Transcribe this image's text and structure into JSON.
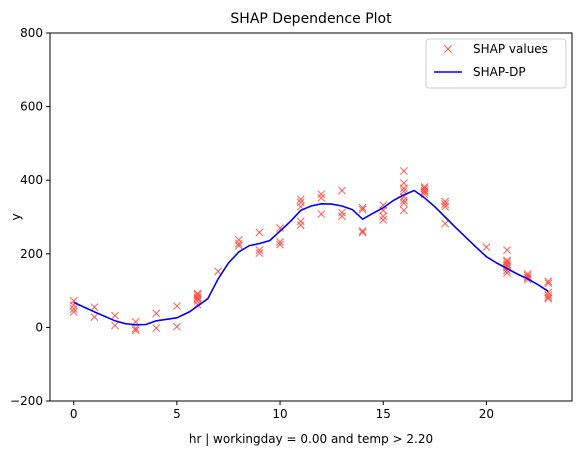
{
  "chart_data": {
    "type": "scatter",
    "title": "SHAP Dependence Plot",
    "xlabel": "hr | workingday = 0.00 and temp > 2.20",
    "ylabel": "y",
    "xlim": [
      -1.15,
      24.15
    ],
    "ylim": [
      -200,
      800
    ],
    "xticks": [
      0,
      5,
      10,
      15,
      20
    ],
    "yticks": [
      -200,
      0,
      200,
      400,
      600,
      800
    ],
    "grid": false,
    "legend_position": "top-right",
    "colors": {
      "scatter": "#ff3b30",
      "line": "#0000ff"
    },
    "series": [
      {
        "name": "SHAP values",
        "kind": "scatter",
        "marker": "x",
        "points": [
          [
            0,
            72
          ],
          [
            0,
            60
          ],
          [
            0,
            50
          ],
          [
            0,
            42
          ],
          [
            1,
            55
          ],
          [
            1,
            28
          ],
          [
            2,
            32
          ],
          [
            2,
            5
          ],
          [
            3,
            15
          ],
          [
            3,
            -3
          ],
          [
            3,
            -8
          ],
          [
            4,
            38
          ],
          [
            4,
            -2
          ],
          [
            5,
            58
          ],
          [
            5,
            2
          ],
          [
            6,
            92
          ],
          [
            6,
            88
          ],
          [
            6,
            82
          ],
          [
            6,
            78
          ],
          [
            6,
            72
          ],
          [
            6,
            62
          ],
          [
            7,
            152
          ],
          [
            8,
            238
          ],
          [
            8,
            228
          ],
          [
            8,
            222
          ],
          [
            9,
            258
          ],
          [
            9,
            210
          ],
          [
            9,
            202
          ],
          [
            10,
            270
          ],
          [
            10,
            232
          ],
          [
            10,
            225
          ],
          [
            11,
            348
          ],
          [
            11,
            340
          ],
          [
            11,
            328
          ],
          [
            11,
            288
          ],
          [
            11,
            278
          ],
          [
            12,
            362
          ],
          [
            12,
            352
          ],
          [
            12,
            308
          ],
          [
            13,
            372
          ],
          [
            13,
            312
          ],
          [
            13,
            302
          ],
          [
            14,
            325
          ],
          [
            14,
            320
          ],
          [
            14,
            262
          ],
          [
            14,
            258
          ],
          [
            15,
            332
          ],
          [
            15,
            318
          ],
          [
            15,
            302
          ],
          [
            15,
            292
          ],
          [
            16,
            425
          ],
          [
            16,
            392
          ],
          [
            16,
            378
          ],
          [
            16,
            370
          ],
          [
            16,
            355
          ],
          [
            16,
            345
          ],
          [
            16,
            338
          ],
          [
            16,
            318
          ],
          [
            17,
            382
          ],
          [
            17,
            378
          ],
          [
            17,
            372
          ],
          [
            17,
            368
          ],
          [
            17,
            362
          ],
          [
            18,
            342
          ],
          [
            18,
            335
          ],
          [
            18,
            328
          ],
          [
            18,
            282
          ],
          [
            20,
            218
          ],
          [
            21,
            210
          ],
          [
            21,
            182
          ],
          [
            21,
            178
          ],
          [
            21,
            172
          ],
          [
            21,
            168
          ],
          [
            21,
            162
          ],
          [
            21,
            155
          ],
          [
            21,
            148
          ],
          [
            22,
            145
          ],
          [
            22,
            140
          ],
          [
            22,
            135
          ],
          [
            22,
            130
          ],
          [
            23,
            125
          ],
          [
            23,
            120
          ],
          [
            23,
            95
          ],
          [
            23,
            88
          ],
          [
            23,
            82
          ],
          [
            23,
            78
          ]
        ]
      },
      {
        "name": "SHAP-DP",
        "kind": "line",
        "points": [
          [
            0,
            68
          ],
          [
            1,
            42
          ],
          [
            2,
            18
          ],
          [
            2.5,
            10
          ],
          [
            3,
            7
          ],
          [
            3.5,
            8
          ],
          [
            4,
            18
          ],
          [
            5,
            26
          ],
          [
            5.6,
            42
          ],
          [
            6,
            58
          ],
          [
            6.5,
            78
          ],
          [
            7,
            132
          ],
          [
            7.5,
            175
          ],
          [
            8,
            205
          ],
          [
            8.5,
            222
          ],
          [
            9,
            228
          ],
          [
            9.5,
            236
          ],
          [
            10,
            262
          ],
          [
            10.5,
            288
          ],
          [
            11,
            318
          ],
          [
            11.5,
            330
          ],
          [
            12,
            336
          ],
          [
            12.5,
            335
          ],
          [
            13,
            330
          ],
          [
            13.5,
            320
          ],
          [
            14,
            294
          ],
          [
            14.5,
            310
          ],
          [
            15,
            325
          ],
          [
            15.5,
            345
          ],
          [
            16,
            360
          ],
          [
            16.5,
            372
          ],
          [
            17,
            352
          ],
          [
            17.5,
            328
          ],
          [
            18,
            300
          ],
          [
            18.5,
            272
          ],
          [
            19,
            245
          ],
          [
            19.5,
            218
          ],
          [
            20,
            192
          ],
          [
            20.5,
            175
          ],
          [
            21,
            160
          ],
          [
            21.5,
            145
          ],
          [
            22,
            132
          ],
          [
            22.5,
            116
          ],
          [
            23,
            98
          ]
        ]
      }
    ]
  }
}
